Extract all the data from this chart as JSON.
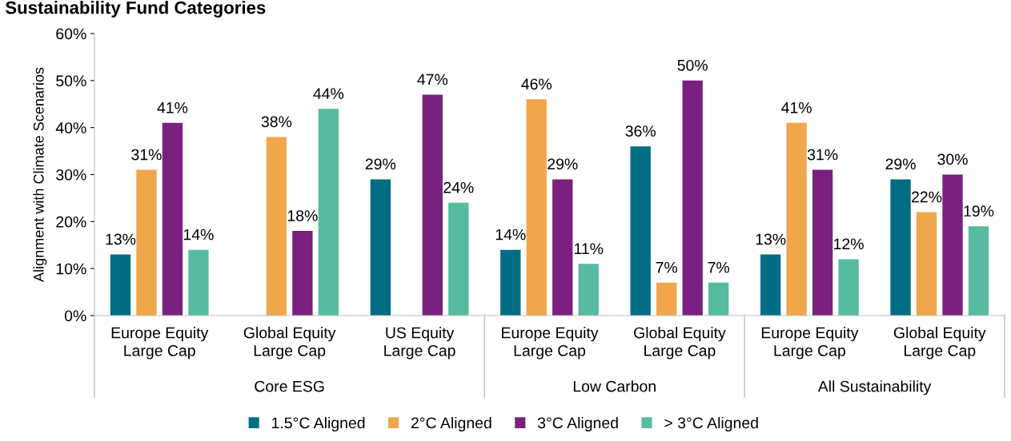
{
  "chart_data": {
    "type": "bar",
    "title": "Sustainability Fund Categories",
    "ylabel": "Alignment with Climate Scenarios",
    "categories": [
      "Europe Equity Large Cap",
      "Global Equity Large Cap",
      "US Equity Large Cap",
      "Europe Equity Large Cap",
      "Global Equity Large Cap",
      "Europe Equity Large Cap",
      "Global Equity Large Cap"
    ],
    "series": [
      {
        "name": "1.5°C Aligned",
        "color": "#006d85",
        "values": [
          13,
          null,
          29,
          14,
          36,
          13,
          29
        ],
        "value_labels": [
          "13%",
          null,
          "29%",
          "14%",
          "36%",
          "13%",
          "29%"
        ]
      },
      {
        "name": "2°C Aligned",
        "color": "#f0a74b",
        "values": [
          31,
          38,
          null,
          46,
          7,
          41,
          22
        ],
        "value_labels": [
          "31%",
          "38%",
          null,
          "46%",
          "7%",
          "41%",
          "22%"
        ]
      },
      {
        "name": "3°C Aligned",
        "color": "#7a207e",
        "values": [
          41,
          18,
          47,
          29,
          50,
          31,
          30
        ],
        "value_labels": [
          "41%",
          "18%",
          "47%",
          "29%",
          "50%",
          "31%",
          "30%"
        ]
      },
      {
        "name": "> 3°C Aligned",
        "color": "#56bba1",
        "values": [
          14,
          44,
          24,
          11,
          7,
          12,
          19
        ],
        "value_labels": [
          "14%",
          "44%",
          "24%",
          "11%",
          "7%",
          "12%",
          "19%"
        ]
      }
    ],
    "annotations": [
      "Core ESG",
      "Low Carbon",
      "All Sustainability"
    ],
    "ylim": [
      0,
      60
    ],
    "yticks": [
      {
        "value": 0,
        "label": "0%"
      },
      {
        "value": 10,
        "label": "10%"
      },
      {
        "value": 20,
        "label": "20%"
      },
      {
        "value": 30,
        "label": "30%"
      },
      {
        "value": 40,
        "label": "40%"
      },
      {
        "value": 50,
        "label": "50%"
      },
      {
        "value": 60,
        "label": "60%"
      }
    ],
    "grid": false,
    "legend": "bottom"
  }
}
